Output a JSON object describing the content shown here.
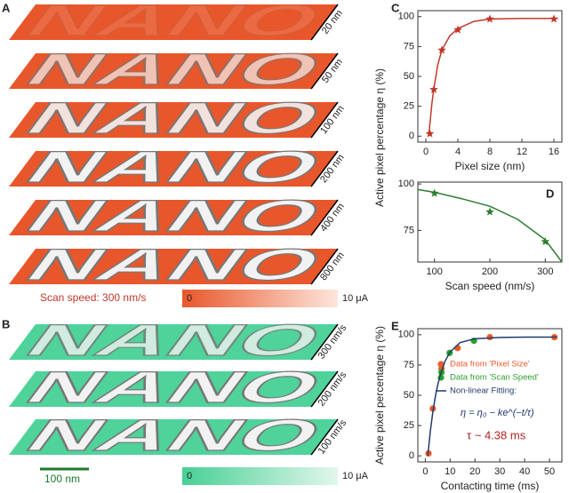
{
  "panel_a": {
    "letter": "A",
    "pattern_text": "NANO",
    "slabs": [
      "20 nm",
      "50 nm",
      "100 nm",
      "200 nm",
      "400 nm",
      "800 nm"
    ],
    "caption": "Scan speed: 300 nm/s",
    "colorbar": {
      "min": "0",
      "max": "10 μA"
    }
  },
  "panel_b": {
    "letter": "B",
    "pattern_text": "NANO",
    "slabs": [
      "300 nm/s",
      "200 nm/s",
      "100 nm/s"
    ],
    "scale_bar": "100 nm",
    "colorbar": {
      "min": "0",
      "max": "10 μA"
    }
  },
  "chart_data": [
    {
      "type": "scatter",
      "panel": "C",
      "xlabel": "Pixel size (nm)",
      "ylabel": "Active pixel percentage η (%)",
      "xlim": [
        -1,
        17
      ],
      "ylim": [
        -5,
        105
      ],
      "xticks": [
        0,
        4,
        8,
        12,
        16
      ],
      "yticks": [
        0,
        25,
        50,
        75,
        100
      ],
      "series": [
        {
          "color": "#c0392b",
          "marker": "star",
          "x": [
            0.5,
            1,
            2,
            4,
            8,
            16
          ],
          "values": [
            2,
            39,
            72,
            89,
            98,
            98
          ]
        },
        {
          "color": "#c0392b",
          "line": true,
          "x": [
            0.35,
            0.5,
            0.75,
            1,
            1.5,
            2,
            3,
            4,
            6,
            8,
            12,
            16.5
          ],
          "values": [
            0,
            10,
            27,
            40,
            60,
            72,
            84,
            90,
            96,
            98,
            98.5,
            98.5
          ]
        }
      ]
    },
    {
      "type": "scatter",
      "panel": "D",
      "xlabel": "Scan speed (nm/s)",
      "xlim": [
        70,
        330
      ],
      "ylim": [
        58,
        101
      ],
      "xticks": [
        100,
        200,
        300
      ],
      "yticks": [
        75,
        100
      ],
      "series": [
        {
          "color": "#2e7d32",
          "marker": "star",
          "x": [
            100,
            200,
            300
          ],
          "values": [
            95,
            85,
            69
          ]
        },
        {
          "color": "#2e7d32",
          "line": true,
          "x": [
            70,
            100,
            150,
            200,
            250,
            300,
            330
          ],
          "values": [
            97,
            95.5,
            92,
            88,
            81,
            70,
            58
          ]
        }
      ]
    },
    {
      "type": "scatter",
      "panel": "E",
      "xlabel": "Contacting time (ms)",
      "ylabel": "Active pixel percentage η (%)",
      "xlim": [
        -3,
        55
      ],
      "ylim": [
        -5,
        105
      ],
      "xticks": [
        0,
        10,
        20,
        30,
        40,
        50
      ],
      "yticks": [
        0,
        25,
        50,
        75,
        100
      ],
      "series": [
        {
          "name": "Data from 'Pixel Size'",
          "color": "#f05a28",
          "marker": "circle",
          "x": [
            1.3,
            3,
            6.5,
            13,
            26,
            52
          ],
          "values": [
            2,
            39,
            72,
            89,
            98,
            98
          ]
        },
        {
          "name": "Data from 'Scan Speed'",
          "color": "#2ca02c",
          "marker": "circle",
          "x": [
            6.5,
            9.8,
            19.6
          ],
          "values": [
            69,
            85,
            95
          ]
        },
        {
          "name": "Non-linear Fitting:",
          "color": "#1f3a6e",
          "line": true,
          "x": [
            1,
            2,
            3,
            4,
            5,
            6,
            8,
            10,
            14,
            20,
            30,
            40,
            53
          ],
          "values": [
            0,
            20,
            35.7,
            48.4,
            58.5,
            66.6,
            78.4,
            85.8,
            93.5,
            96.7,
            97.8,
            98,
            98
          ]
        }
      ],
      "formula": "η = η₀ − ke^(−t/τ)",
      "tau": "τ ~ 4.38 ms"
    }
  ]
}
